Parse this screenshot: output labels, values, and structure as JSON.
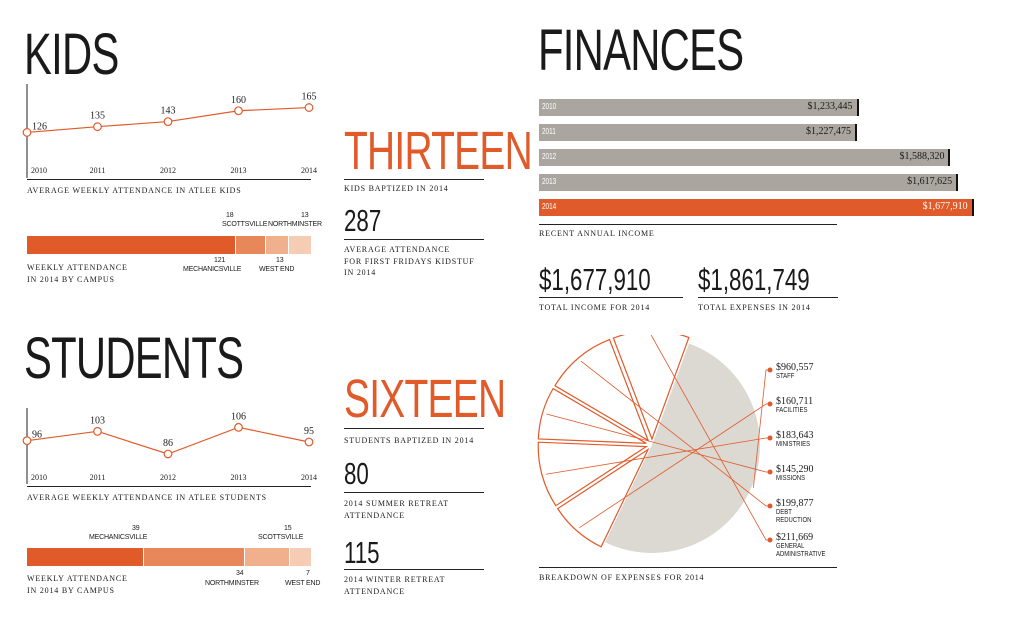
{
  "colors": {
    "accent": "#e05a2a",
    "seg_mid": "#e8875a",
    "seg_light": "#f0b08e",
    "seg_lighter": "#f6cdb4",
    "gray_bar": "#aaa59f",
    "pie_fill": "#dcd8d2"
  },
  "kids": {
    "title": "KIDS",
    "line_caption": "AVERAGE WEEKLY ATTENDANCE IN ATLEE KIDS",
    "campus_caption_1": "WEEKLY ATTENDANCE",
    "campus_caption_2": "IN 2014 BY CAMPUS",
    "stat_word": "THIRTEEN",
    "stat_word_caption": "KIDS BAPTIZED IN 2014",
    "stat_num": "287",
    "stat_num_caption_1": "AVERAGE ATTENDANCE",
    "stat_num_caption_2": "FOR FIRST FRIDAYS KIDSTUF",
    "stat_num_caption_3": "IN 2014"
  },
  "students": {
    "title": "STUDENTS",
    "line_caption": "AVERAGE WEEKLY ATTENDANCE IN ATLEE STUDENTS",
    "campus_caption_1": "WEEKLY ATTENDANCE",
    "campus_caption_2": "IN 2014 BY CAMPUS",
    "stat_word": "SIXTEEN",
    "stat_word_caption": "STUDENTS BAPTIZED IN 2014",
    "stat_num_1": "80",
    "stat_num_1_caption_1": "2014 SUMMER RETREAT",
    "stat_num_1_caption_2": "ATTENDANCE",
    "stat_num_2": "115",
    "stat_num_2_caption_1": "2014 WINTER RETREAT",
    "stat_num_2_caption_2": "ATTENDANCE"
  },
  "finances": {
    "title": "FINANCES",
    "income_caption": "RECENT ANNUAL INCOME",
    "total_income": "$1,677,910",
    "total_income_caption": "TOTAL INCOME FOR 2014",
    "total_expenses": "$1,861,749",
    "total_expenses_caption": "TOTAL EXPENSES IN 2014",
    "pie_caption": "BREAKDOWN OF EXPENSES FOR 2014"
  },
  "chart_data": [
    {
      "id": "kids_attendance",
      "type": "line",
      "title": "AVERAGE WEEKLY ATTENDANCE IN ATLEE KIDS",
      "x": [
        "2010",
        "2011",
        "2012",
        "2013",
        "2014"
      ],
      "values": [
        126,
        135,
        143,
        160,
        165
      ],
      "ylim": [
        100,
        180
      ]
    },
    {
      "id": "kids_campus",
      "type": "bar",
      "title": "WEEKLY ATTENDANCE IN 2014 BY CAMPUS",
      "categories": [
        "MECHANICSVILLE",
        "SCOTTSVILLE",
        "WEST END",
        "NORTHMINSTER"
      ],
      "values": [
        121,
        18,
        13,
        13
      ]
    },
    {
      "id": "students_attendance",
      "type": "line",
      "title": "AVERAGE WEEKLY ATTENDANCE IN ATLEE STUDENTS",
      "x": [
        "2010",
        "2011",
        "2012",
        "2013",
        "2014"
      ],
      "values": [
        96,
        103,
        86,
        106,
        95
      ],
      "ylim": [
        80,
        110
      ]
    },
    {
      "id": "students_campus",
      "type": "bar",
      "title": "WEEKLY ATTENDANCE IN 2014 BY CAMPUS",
      "categories": [
        "MECHANICSVILLE",
        "NORTHMINSTER",
        "SCOTTSVILLE",
        "WEST END"
      ],
      "values": [
        39,
        34,
        15,
        7
      ]
    },
    {
      "id": "annual_income",
      "type": "bar",
      "title": "RECENT ANNUAL INCOME",
      "categories": [
        "2010",
        "2011",
        "2012",
        "2013",
        "2014"
      ],
      "values": [
        1233445,
        1227475,
        1588320,
        1617625,
        1677910
      ],
      "labels": [
        "$1,233,445",
        "$1,227,475",
        "$1,588,320",
        "$1,617,625",
        "$1,677,910"
      ],
      "xlim": [
        0,
        1710000
      ]
    },
    {
      "id": "expenses",
      "type": "pie",
      "title": "BREAKDOWN OF EXPENSES FOR 2014",
      "categories": [
        "STAFF",
        "FACILITIES",
        "MINISTRIES",
        "MISSIONS",
        "DEBT REDUCTION",
        "GENERAL ADMINISTRATIVE"
      ],
      "values": [
        960557,
        160711,
        183643,
        145290,
        199877,
        211669
      ],
      "labels": [
        "$960,557",
        "$160,711",
        "$183,643",
        "$145,290",
        "$199,877",
        "$211,669"
      ]
    }
  ]
}
